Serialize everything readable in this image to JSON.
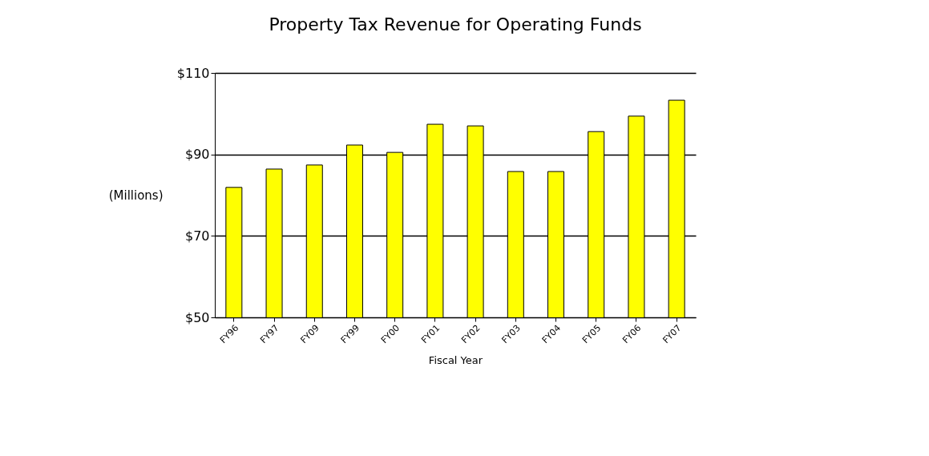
{
  "chart_data": {
    "type": "bar",
    "title": "Property Tax Revenue for Operating Funds",
    "xlabel": "Fiscal Year",
    "ylabel": "(Millions)",
    "categories": [
      "FY96",
      "FY97",
      "FY09",
      "FY99",
      "FY00",
      "FY01",
      "FY02",
      "FY03",
      "FY04",
      "FY05",
      "FY06",
      "FY07"
    ],
    "values": [
      81.9,
      86.4,
      87.4,
      92.3,
      90.5,
      97.4,
      97,
      85.8,
      85.8,
      95.6,
      99.4,
      103.3
    ],
    "color": "#ffff00",
    "ylim": [
      50,
      110
    ],
    "yticks": [
      {
        "value": 50,
        "label": "$50"
      },
      {
        "value": 70,
        "label": "$70"
      },
      {
        "value": 90,
        "label": "$90"
      },
      {
        "value": 110,
        "label": "$110"
      }
    ],
    "grid": "y"
  }
}
